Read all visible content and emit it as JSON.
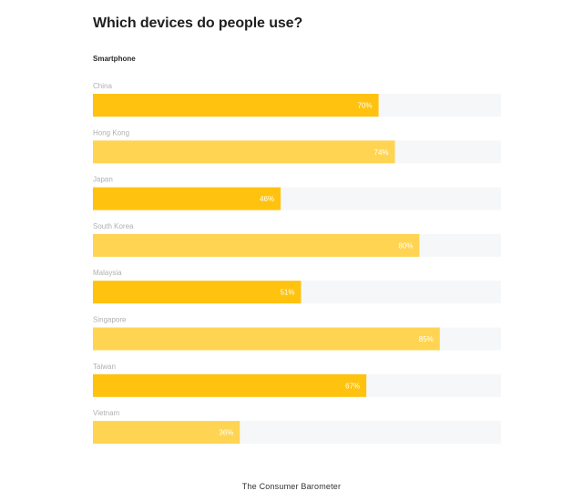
{
  "header": {
    "title": "Which devices do people use?",
    "subtitle": "Smartphone"
  },
  "footer": {
    "source": "The Consumer Barometer"
  },
  "colors": {
    "bar_dark": "#ffc20e",
    "bar_light": "#ffd452",
    "track": "#f6f7f9",
    "label": "#b0b0b0",
    "value_inside": "#ffffff",
    "value_outside": "#b8b8b8"
  },
  "chart_data": {
    "type": "bar",
    "orientation": "horizontal",
    "categories": [
      "China",
      "Hong Kong",
      "Japan",
      "South Korea",
      "Malaysia",
      "Singapore",
      "Taiwan",
      "Vietnam"
    ],
    "values": [
      70,
      74,
      46,
      80,
      51,
      85,
      67,
      36
    ],
    "value_labels": [
      "70%",
      "74%",
      "46%",
      "80%",
      "51%",
      "85%",
      "67%",
      "36%"
    ],
    "xlim": [
      0,
      100
    ],
    "unit": "%",
    "title": "Which devices do people use?",
    "subtitle": "Smartphone",
    "grid": false,
    "legend": "none"
  }
}
